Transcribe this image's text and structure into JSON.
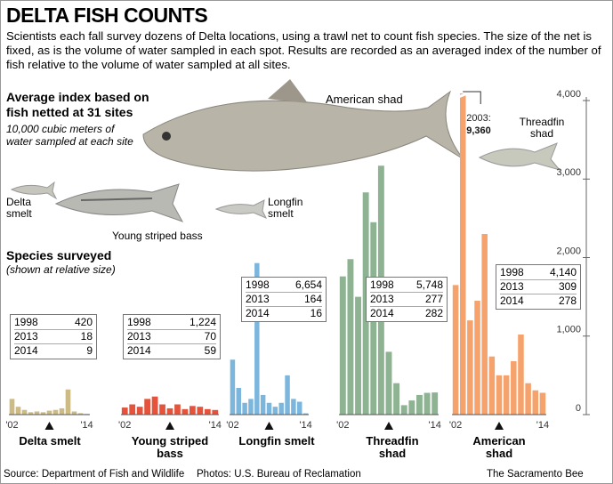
{
  "chart_data": {
    "type": "bar",
    "title": "DELTA FISH COUNTS",
    "subtitle": "Scientists each fall survey dozens of Delta locations, using a trawl net to count fish species. The size of the net is fixed, as is the volume of water sampled in each spot. Results are recorded as an averaged index of the number of fish relative to the volume of water sampled at all sites.",
    "y_label": "Average index based on fish netted at 31 sites",
    "y_note": "10,000 cubic meters of water sampled at each site",
    "legend_title": "Species surveyed",
    "legend_note": "(shown at relative size)",
    "annotation": "2003:",
    "categories": [
      "'02",
      null,
      null,
      null,
      null,
      null,
      null,
      null,
      null,
      null,
      null,
      null,
      "'14"
    ],
    "ylim": [
      0,
      4000
    ],
    "yticks": [
      0,
      {
        "value": 1000,
        "label": "1,000"
      },
      {
        "value": 2000,
        "label": "2,000"
      },
      {
        "value": 3000,
        "label": "3,000"
      },
      {
        "value": 4000,
        "label": "4,000"
      }
    ],
    "series": [
      {
        "name": "Delta smelt",
        "color": "#cdbb86",
        "values": [
          200,
          100,
          60,
          30,
          40,
          30,
          50,
          60,
          80,
          320,
          40,
          18,
          9
        ],
        "table": [
          [
            "1998",
            "420"
          ],
          [
            "2013",
            "18"
          ],
          [
            "2014",
            "9"
          ]
        ]
      },
      {
        "name": "Young striped bass",
        "color": "#e5533c",
        "values": [
          90,
          130,
          100,
          200,
          230,
          130,
          80,
          130,
          70,
          110,
          100,
          70,
          59
        ],
        "table": [
          [
            "1998",
            "1,224"
          ],
          [
            "2013",
            "70"
          ],
          [
            "2014",
            "59"
          ]
        ]
      },
      {
        "name": "Longfin smelt",
        "color": "#7db6dd",
        "values": [
          700,
          340,
          150,
          200,
          1930,
          250,
          150,
          100,
          150,
          500,
          200,
          164,
          16
        ],
        "table": [
          [
            "1998",
            "6,654"
          ],
          [
            "2013",
            "164"
          ],
          [
            "2014",
            "16"
          ]
        ]
      },
      {
        "name": "Threadfin shad",
        "color": "#8db392",
        "values": [
          1760,
          1980,
          1500,
          2830,
          2450,
          3170,
          800,
          400,
          120,
          180,
          250,
          277,
          282
        ],
        "table": [
          [
            "1998",
            "5,748"
          ],
          [
            "2013",
            "277"
          ],
          [
            "2014",
            "282"
          ]
        ]
      },
      {
        "name": "American shad",
        "color": "#f5a26c",
        "values": [
          1650,
          9360,
          1200,
          1450,
          2300,
          740,
          500,
          500,
          680,
          1020,
          400,
          309,
          278
        ],
        "value_labels": [
          null,
          "9,360",
          null,
          null,
          null,
          null,
          null,
          null,
          null,
          null,
          null,
          null,
          null
        ],
        "table": [
          [
            "1998",
            "4,140"
          ],
          [
            "2013",
            "309"
          ],
          [
            "2014",
            "278"
          ]
        ]
      }
    ],
    "source": "Source: Department of Fish and Wildlife",
    "photos": "Photos: U.S. Bureau of Reclamation",
    "credit": "The Sacramento Bee"
  }
}
